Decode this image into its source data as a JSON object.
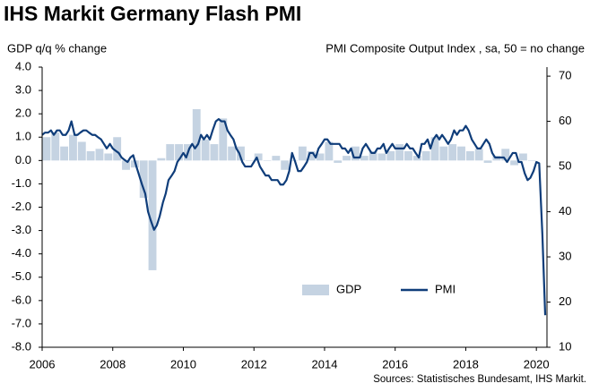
{
  "chart_data": {
    "type": "bar",
    "title": "IHS Markit Germany Flash PMI",
    "y_label": "GDP q/q % change",
    "y2_label": "PMI Composite  Output Index , sa, 50 = no change",
    "source": "Sources: Statistisches Bundesamt, IHS Markit.",
    "legend": "lower right",
    "xlim": [
      2006,
      2020.3
    ],
    "xticks": [
      2006,
      2008,
      2010,
      2012,
      2014,
      2016,
      2018,
      2020
    ],
    "ylim": [
      -8,
      4
    ],
    "yticks": [
      {
        "value": 4,
        "label": "4.0"
      },
      {
        "value": 3,
        "label": "3.0"
      },
      {
        "value": 2,
        "label": "2.0"
      },
      {
        "value": 1,
        "label": "1.0"
      },
      {
        "value": 0,
        "label": "0.0"
      },
      {
        "value": -1,
        "label": "-1.0"
      },
      {
        "value": -2,
        "label": "-2.0"
      },
      {
        "value": -3,
        "label": "-3.0"
      },
      {
        "value": -4,
        "label": "-4.0"
      },
      {
        "value": -5,
        "label": "-5.0"
      },
      {
        "value": -6,
        "label": "-6.0"
      },
      {
        "value": -7,
        "label": "-7.0"
      },
      {
        "value": -8,
        "label": "-8.0"
      }
    ],
    "y2lim": [
      10,
      72
    ],
    "y2ticks": [
      70,
      60,
      50,
      40,
      30,
      20,
      10
    ],
    "series": [
      {
        "name": "GDP",
        "type": "bar",
        "color": "#c5d3e2",
        "x": [
          2006.125,
          2006.375,
          2006.625,
          2006.875,
          2007.125,
          2007.375,
          2007.625,
          2007.875,
          2008.125,
          2008.375,
          2008.625,
          2008.875,
          2009.125,
          2009.375,
          2009.625,
          2009.875,
          2010.125,
          2010.375,
          2010.625,
          2010.875,
          2011.125,
          2011.375,
          2011.625,
          2011.875,
          2012.125,
          2012.375,
          2012.625,
          2012.875,
          2013.125,
          2013.375,
          2013.625,
          2013.875,
          2014.125,
          2014.375,
          2014.625,
          2014.875,
          2015.125,
          2015.375,
          2015.625,
          2015.875,
          2016.125,
          2016.375,
          2016.625,
          2016.875,
          2017.125,
          2017.375,
          2017.625,
          2017.875,
          2018.125,
          2018.375,
          2018.625,
          2018.875,
          2019.125,
          2019.375,
          2019.625,
          2019.875
        ],
        "values": [
          1.0,
          1.2,
          0.6,
          1.1,
          0.8,
          0.4,
          0.5,
          0.3,
          1.0,
          -0.4,
          -0.3,
          -1.6,
          -4.7,
          0.1,
          0.7,
          0.7,
          0.7,
          2.2,
          0.9,
          0.7,
          1.8,
          0.6,
          0.6,
          0.0,
          0.3,
          0.0,
          0.2,
          -0.4,
          0.0,
          0.6,
          0.4,
          0.3,
          0.8,
          -0.1,
          0.2,
          0.6,
          0.2,
          0.4,
          0.3,
          0.4,
          0.7,
          0.4,
          0.2,
          0.4,
          1.0,
          0.6,
          0.7,
          0.6,
          0.4,
          0.5,
          -0.1,
          0.2,
          0.5,
          -0.2,
          0.3,
          0.0
        ]
      },
      {
        "name": "PMI",
        "type": "line",
        "axis": "y2",
        "color": "#0f3d7a",
        "x": [
          2006.0,
          2006.08,
          2006.17,
          2006.25,
          2006.33,
          2006.42,
          2006.5,
          2006.58,
          2006.67,
          2006.75,
          2006.83,
          2006.92,
          2007.0,
          2007.08,
          2007.17,
          2007.25,
          2007.33,
          2007.42,
          2007.5,
          2007.58,
          2007.67,
          2007.75,
          2007.83,
          2007.92,
          2008.0,
          2008.08,
          2008.17,
          2008.25,
          2008.33,
          2008.42,
          2008.5,
          2008.58,
          2008.67,
          2008.75,
          2008.83,
          2008.92,
          2009.0,
          2009.08,
          2009.17,
          2009.25,
          2009.33,
          2009.42,
          2009.5,
          2009.58,
          2009.67,
          2009.75,
          2009.83,
          2009.92,
          2010.0,
          2010.08,
          2010.17,
          2010.25,
          2010.33,
          2010.42,
          2010.5,
          2010.58,
          2010.67,
          2010.75,
          2010.83,
          2010.92,
          2011.0,
          2011.08,
          2011.17,
          2011.25,
          2011.33,
          2011.42,
          2011.5,
          2011.58,
          2011.67,
          2011.75,
          2011.83,
          2011.92,
          2012.0,
          2012.08,
          2012.17,
          2012.25,
          2012.33,
          2012.42,
          2012.5,
          2012.58,
          2012.67,
          2012.75,
          2012.83,
          2012.92,
          2013.0,
          2013.08,
          2013.17,
          2013.25,
          2013.33,
          2013.42,
          2013.5,
          2013.58,
          2013.67,
          2013.75,
          2013.83,
          2013.92,
          2014.0,
          2014.08,
          2014.17,
          2014.25,
          2014.33,
          2014.42,
          2014.5,
          2014.58,
          2014.67,
          2014.75,
          2014.83,
          2014.92,
          2015.0,
          2015.08,
          2015.17,
          2015.25,
          2015.33,
          2015.42,
          2015.5,
          2015.58,
          2015.67,
          2015.75,
          2015.83,
          2015.92,
          2016.0,
          2016.08,
          2016.17,
          2016.25,
          2016.33,
          2016.42,
          2016.5,
          2016.58,
          2016.67,
          2016.75,
          2016.83,
          2016.92,
          2017.0,
          2017.08,
          2017.17,
          2017.25,
          2017.33,
          2017.42,
          2017.5,
          2017.58,
          2017.67,
          2017.75,
          2017.83,
          2017.92,
          2018.0,
          2018.08,
          2018.17,
          2018.25,
          2018.33,
          2018.42,
          2018.5,
          2018.58,
          2018.67,
          2018.75,
          2018.83,
          2018.92,
          2019.0,
          2019.08,
          2019.17,
          2019.25,
          2019.33,
          2019.42,
          2019.5,
          2019.58,
          2019.67,
          2019.75,
          2019.83,
          2019.92,
          2020.0,
          2020.08,
          2020.17,
          2020.25
        ],
        "values": [
          57,
          57.5,
          57.5,
          58,
          57,
          58,
          58,
          57,
          57,
          58,
          60,
          57,
          57,
          57.5,
          58,
          58,
          57.5,
          57,
          57,
          56.5,
          56,
          55,
          54,
          55,
          54,
          53.5,
          53,
          52,
          51.5,
          51,
          52,
          52.5,
          50,
          48,
          46,
          44,
          40,
          38,
          36,
          37,
          39,
          42,
          44,
          47,
          48,
          49,
          51,
          52,
          53,
          52,
          54,
          55,
          54,
          55,
          57,
          56,
          57,
          56,
          58,
          60,
          60.5,
          60,
          60,
          58,
          57,
          56,
          54,
          53,
          51,
          50,
          50,
          50,
          51,
          52,
          50,
          49,
          48,
          48,
          47,
          47,
          47,
          46,
          46,
          47,
          49,
          53,
          51,
          49,
          49,
          50,
          51,
          53,
          53,
          52,
          54,
          55,
          56,
          56,
          55,
          55,
          55,
          55,
          54,
          54,
          53,
          54,
          52,
          52,
          52,
          54,
          55,
          54,
          53,
          53,
          54,
          54,
          55,
          53,
          54,
          55,
          54,
          54,
          54,
          54,
          55,
          54,
          54,
          53,
          52,
          55,
          55,
          56,
          54,
          56,
          57,
          56,
          57,
          56,
          55,
          56,
          58,
          57,
          58,
          58,
          59,
          58,
          56,
          55,
          54,
          54,
          55,
          56,
          55,
          53,
          52,
          52,
          52,
          52,
          51,
          52,
          53,
          53,
          51,
          51,
          48.5,
          47,
          47.5,
          49,
          51,
          50.7,
          35,
          17.1
        ]
      }
    ]
  }
}
